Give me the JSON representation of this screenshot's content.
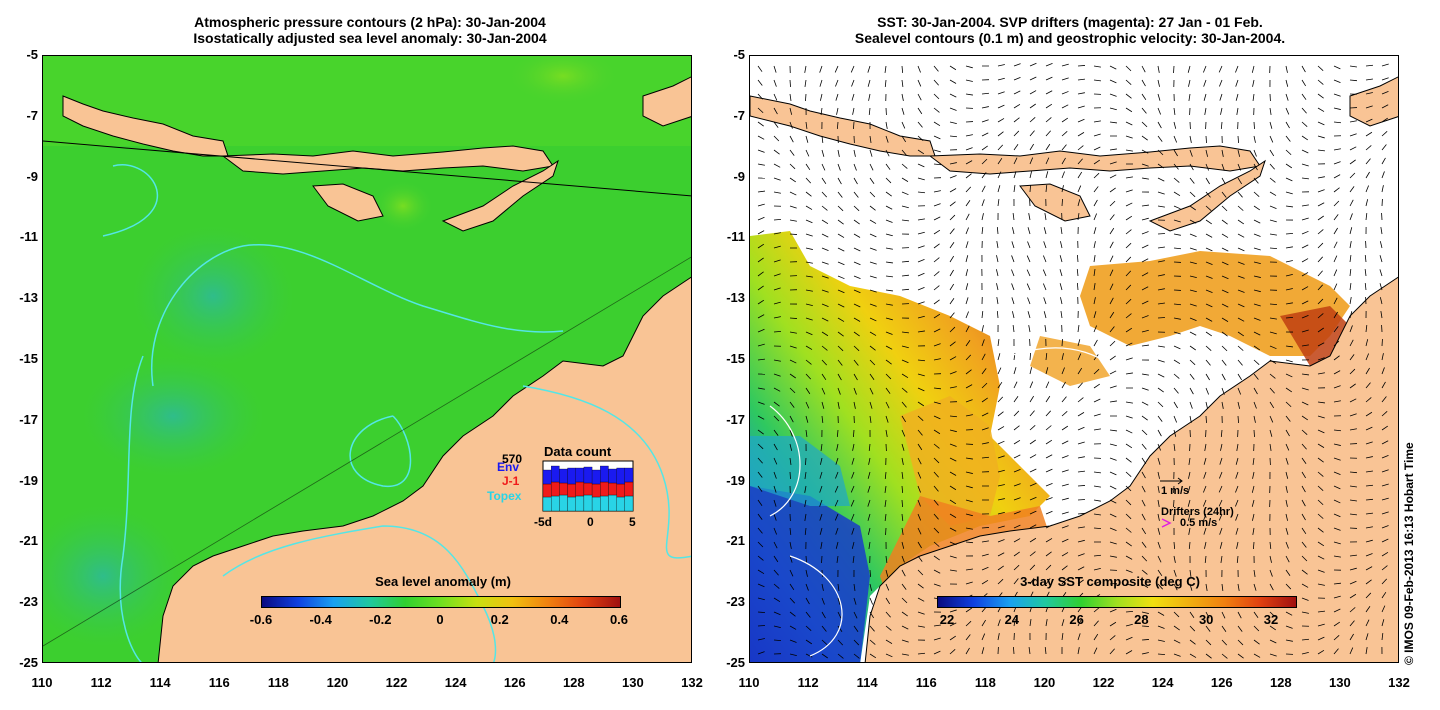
{
  "left_panel": {
    "title_line1": "Atmospheric pressure contours (2 hPa): 30-Jan-2004",
    "title_line2": "Isostatically adjusted sea level anomaly: 30-Jan-2004",
    "colorbar_label": "Sea level anomaly (m)",
    "colorbar_ticks": [
      "-0.6",
      "-0.4",
      "-0.2",
      "0",
      "0.2",
      "0.4",
      "0.6"
    ],
    "data_count": {
      "label": "Data count",
      "total": "570",
      "legend": [
        "Env",
        "J-1",
        "Topex"
      ],
      "legend_colors": [
        "#1a1af0",
        "#f01a1a",
        "#29d4e6"
      ],
      "xaxis": [
        "-5d",
        "0",
        "5"
      ]
    }
  },
  "right_panel": {
    "title_line1": "SST: 30-Jan-2004. SVP drifters (magenta): 27 Jan - 01 Feb.",
    "title_line2": "Sealevel contours (0.1 m) and geostrophic velocity: 30-Jan-2004.",
    "colorbar_label": "3-day SST composite (deg C)",
    "colorbar_ticks": [
      "22",
      "24",
      "26",
      "28",
      "30",
      "32"
    ],
    "velocity_scale": "1 m/s",
    "drifters_label": "Drifters (24hr)",
    "drifter_scale": "0.5 m/s"
  },
  "axes": {
    "y_ticks": [
      "-5",
      "-7",
      "-9",
      "-11",
      "-13",
      "-15",
      "-17",
      "-19",
      "-21",
      "-23",
      "-25"
    ],
    "x_ticks": [
      "110",
      "112",
      "114",
      "116",
      "118",
      "120",
      "122",
      "124",
      "126",
      "128",
      "130",
      "132"
    ]
  },
  "copyright": "© IMOS 09-Feb-2013 16:13 Hobart Time",
  "colors": {
    "land": "#f9c495",
    "ocean_green": "#3ccf2f",
    "ocean_teal": "#2fc28a"
  }
}
